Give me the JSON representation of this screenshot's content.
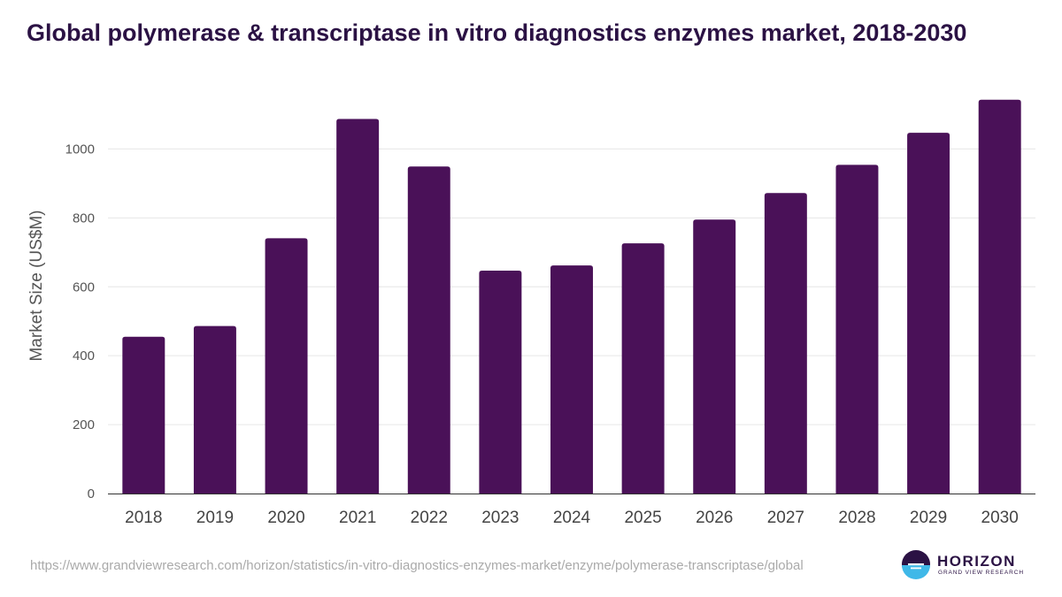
{
  "title": "Global polymerase & transcriptase in vitro diagnostics enzymes market, 2018-2030",
  "source_url": "https://www.grandviewresearch.com/horizon/statistics/in-vitro-diagnostics-enzymes-market/enzyme/polymerase-transcriptase/global",
  "logo": {
    "name": "HORIZON",
    "subtitle": "GRAND VIEW RESEARCH"
  },
  "colors": {
    "bar": "#4a1158",
    "title": "#2b1244",
    "grid": "#e6e6e6",
    "logo_accent": "#3fb8e8"
  },
  "chart_data": {
    "type": "bar",
    "title": "Global polymerase & transcriptase in vitro diagnostics enzymes market, 2018-2030",
    "xlabel": "",
    "ylabel": "Market Size (US$M)",
    "categories": [
      "2018",
      "2019",
      "2020",
      "2021",
      "2022",
      "2023",
      "2024",
      "2025",
      "2026",
      "2027",
      "2028",
      "2029",
      "2030"
    ],
    "values": [
      455,
      486,
      741,
      1087,
      949,
      647,
      662,
      726,
      795,
      872,
      954,
      1047,
      1143
    ],
    "ylim": [
      0,
      1150
    ],
    "yticks": [
      0,
      200,
      400,
      600,
      800,
      1000
    ],
    "grid": true,
    "legend": "none"
  }
}
